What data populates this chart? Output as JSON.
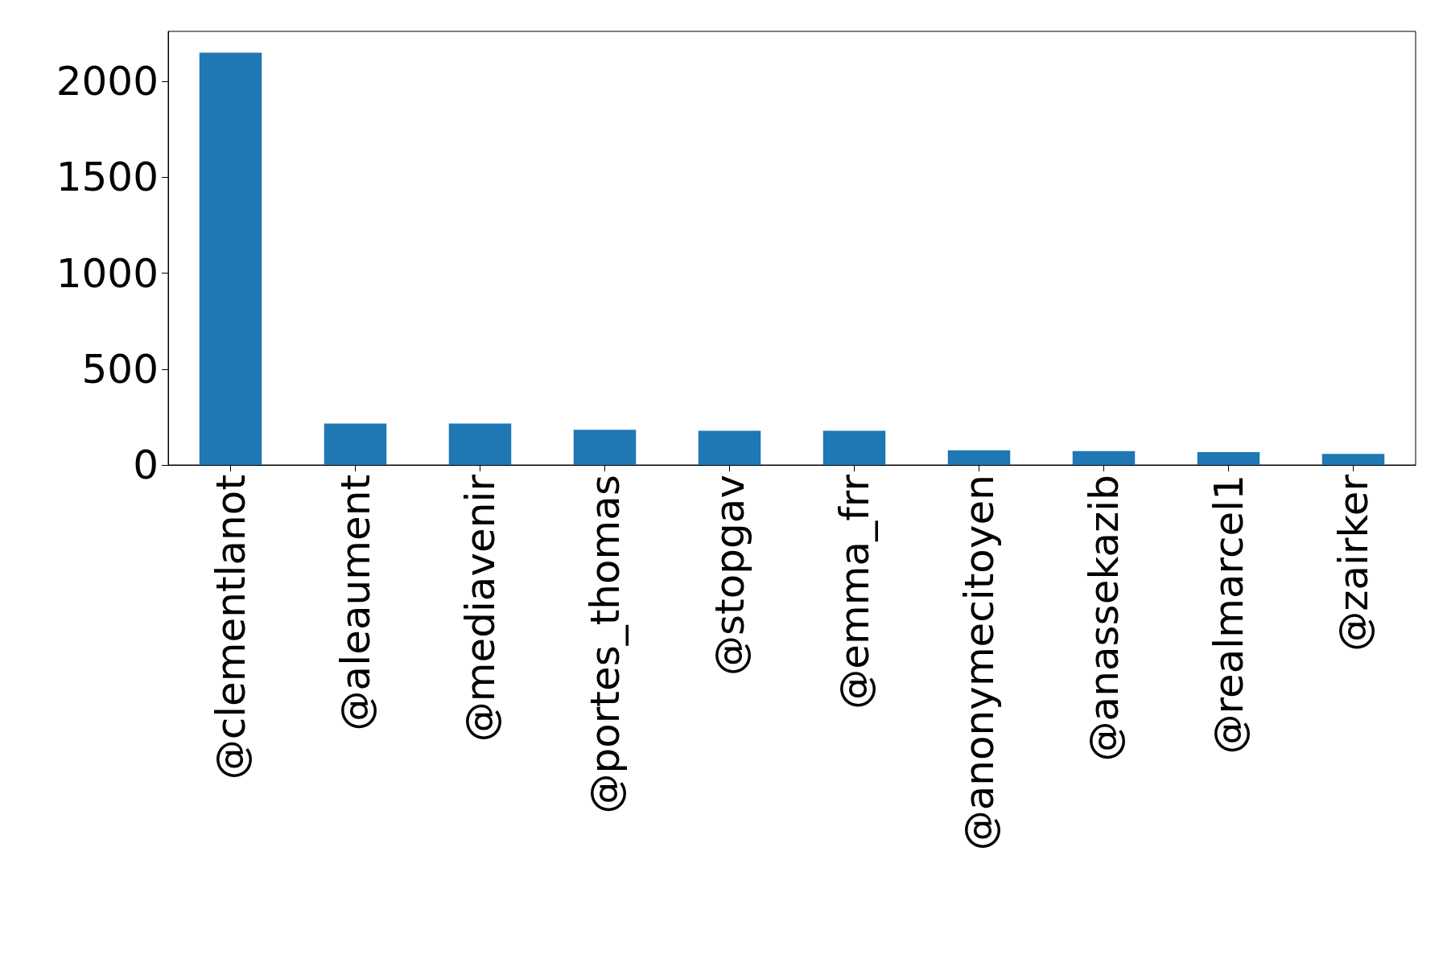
{
  "chart_data": {
    "type": "bar",
    "categories": [
      "@clementlanot",
      "@aleaument",
      "@mediavenir",
      "@portes_thomas",
      "@stopgav",
      "@emma_frr",
      "@anonymecitoyen",
      "@anassekazib",
      "@realmarcel1",
      "@zairker"
    ],
    "values": [
      2149,
      216,
      216,
      183,
      178,
      178,
      77,
      72,
      67,
      58
    ],
    "color": "#1f77b4",
    "ylim": [
      0,
      2260
    ],
    "yticks": [
      0,
      500,
      1000,
      1500,
      2000
    ],
    "grid": false
  }
}
